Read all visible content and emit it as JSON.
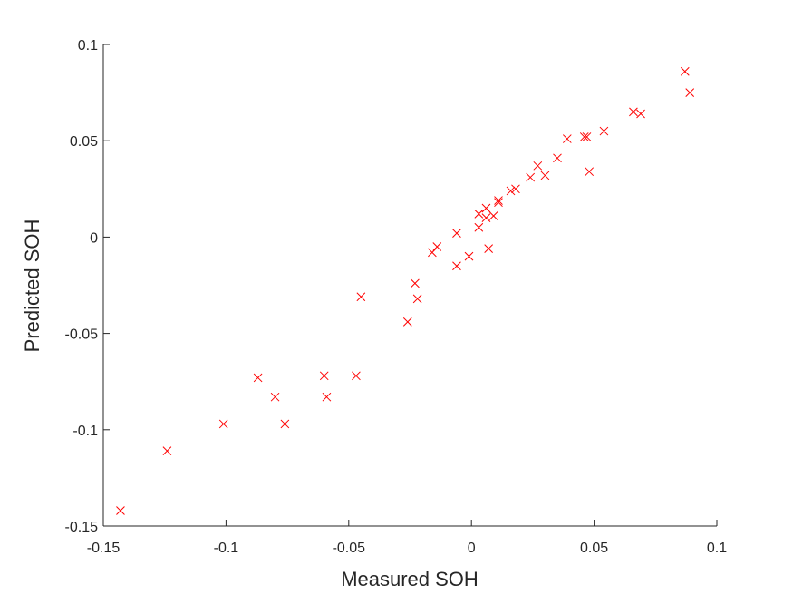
{
  "chart_data": {
    "type": "scatter",
    "xlabel": "Measured SOH",
    "ylabel": "Predicted SOH",
    "xlim": [
      -0.15,
      0.1
    ],
    "ylim": [
      -0.15,
      0.1
    ],
    "x_ticks": [
      -0.15,
      -0.1,
      -0.05,
      0,
      0.05,
      0.1
    ],
    "x_tick_labels": [
      "-0.15",
      "-0.1",
      "-0.05",
      "0",
      "0.05",
      "0.1"
    ],
    "y_ticks": [
      -0.15,
      -0.1,
      -0.05,
      0,
      0.05,
      0.1
    ],
    "y_tick_labels": [
      "-0.15",
      "-0.1",
      "-0.05",
      "0",
      "0.05",
      "0.1"
    ],
    "grid": false,
    "marker": "x",
    "marker_color": "#ff0000",
    "axis_color": "#262626",
    "points": [
      {
        "x": -0.143,
        "y": -0.142
      },
      {
        "x": -0.124,
        "y": -0.111
      },
      {
        "x": -0.101,
        "y": -0.097
      },
      {
        "x": -0.087,
        "y": -0.073
      },
      {
        "x": -0.08,
        "y": -0.083
      },
      {
        "x": -0.076,
        "y": -0.097
      },
      {
        "x": -0.06,
        "y": -0.072
      },
      {
        "x": -0.059,
        "y": -0.083
      },
      {
        "x": -0.047,
        "y": -0.072
      },
      {
        "x": -0.045,
        "y": -0.031
      },
      {
        "x": -0.026,
        "y": -0.044
      },
      {
        "x": -0.023,
        "y": -0.024
      },
      {
        "x": -0.022,
        "y": -0.032
      },
      {
        "x": -0.016,
        "y": -0.008
      },
      {
        "x": -0.014,
        "y": -0.005
      },
      {
        "x": -0.006,
        "y": 0.002
      },
      {
        "x": -0.006,
        "y": -0.015
      },
      {
        "x": -0.001,
        "y": -0.01
      },
      {
        "x": 0.003,
        "y": 0.012
      },
      {
        "x": 0.003,
        "y": 0.005
      },
      {
        "x": 0.006,
        "y": 0.015
      },
      {
        "x": 0.006,
        "y": 0.01
      },
      {
        "x": 0.007,
        "y": -0.006
      },
      {
        "x": 0.009,
        "y": 0.011
      },
      {
        "x": 0.011,
        "y": 0.019
      },
      {
        "x": 0.011,
        "y": 0.018
      },
      {
        "x": 0.016,
        "y": 0.024
      },
      {
        "x": 0.018,
        "y": 0.025
      },
      {
        "x": 0.024,
        "y": 0.031
      },
      {
        "x": 0.027,
        "y": 0.037
      },
      {
        "x": 0.03,
        "y": 0.032
      },
      {
        "x": 0.035,
        "y": 0.041
      },
      {
        "x": 0.039,
        "y": 0.051
      },
      {
        "x": 0.046,
        "y": 0.052
      },
      {
        "x": 0.047,
        "y": 0.052
      },
      {
        "x": 0.048,
        "y": 0.034
      },
      {
        "x": 0.054,
        "y": 0.055
      },
      {
        "x": 0.066,
        "y": 0.065
      },
      {
        "x": 0.069,
        "y": 0.064
      },
      {
        "x": 0.087,
        "y": 0.086
      },
      {
        "x": 0.089,
        "y": 0.075
      }
    ]
  }
}
